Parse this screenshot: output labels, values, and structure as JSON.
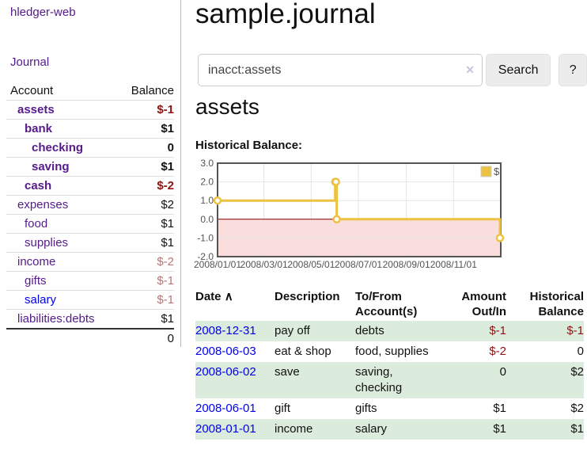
{
  "app": {
    "brand": "hledger-web",
    "nav_journal": "Journal"
  },
  "sidebar": {
    "table": {
      "headers": {
        "account": "Account",
        "balance": "Balance"
      },
      "rows": [
        {
          "account": "assets",
          "depth": 1,
          "bold": true,
          "link_color": "purple",
          "balance": "$-1",
          "balance_style": "neg-strong"
        },
        {
          "account": "bank",
          "depth": 2,
          "bold": true,
          "link_color": "purple",
          "balance": "$1",
          "balance_style": "normal"
        },
        {
          "account": "checking",
          "depth": 3,
          "bold": true,
          "link_color": "purple",
          "balance": "0",
          "balance_style": "normal"
        },
        {
          "account": "saving",
          "depth": 3,
          "bold": true,
          "link_color": "purple",
          "balance": "$1",
          "balance_style": "normal"
        },
        {
          "account": "cash",
          "depth": 2,
          "bold": true,
          "link_color": "purple",
          "balance": "$-2",
          "balance_style": "neg-strong"
        },
        {
          "account": "expenses",
          "depth": 1,
          "bold": false,
          "link_color": "purple",
          "balance": "$2",
          "balance_style": "normal"
        },
        {
          "account": "food",
          "depth": 2,
          "bold": false,
          "link_color": "purple",
          "balance": "$1",
          "balance_style": "normal"
        },
        {
          "account": "supplies",
          "depth": 2,
          "bold": false,
          "link_color": "purple",
          "balance": "$1",
          "balance_style": "normal"
        },
        {
          "account": "income",
          "depth": 1,
          "bold": false,
          "link_color": "purple",
          "balance": "$-2",
          "balance_style": "neg-soft"
        },
        {
          "account": "gifts",
          "depth": 2,
          "bold": false,
          "link_color": "purple",
          "balance": "$-1",
          "balance_style": "neg-soft"
        },
        {
          "account": "salary",
          "depth": 2,
          "bold": false,
          "link_color": "blue",
          "balance": "$-1",
          "balance_style": "neg-soft"
        },
        {
          "account": "liabilities:debts",
          "depth": 1,
          "bold": false,
          "link_color": "purple",
          "balance": "$1",
          "balance_style": "normal"
        }
      ],
      "total": "0"
    }
  },
  "main": {
    "title": "sample.journal",
    "search": {
      "value": "inacct:assets",
      "clear_icon": "✕",
      "button_label": "Search",
      "help_label": "?"
    },
    "heading": "assets",
    "chart_title": "Historical Balance:"
  },
  "chart_data": {
    "type": "line",
    "title": "Historical Balance",
    "legend_label": "$",
    "legend_position": "top-right",
    "grid": true,
    "steps": true,
    "ylim": [
      -2,
      3
    ],
    "xlim": [
      "2008-01-01",
      "2009-01-01"
    ],
    "yticks": [
      {
        "label": "3.0",
        "value": 3
      },
      {
        "label": "2.0",
        "value": 2
      },
      {
        "label": "1.0",
        "value": 1
      },
      {
        "label": "0.0",
        "value": 0
      },
      {
        "label": "-1.0",
        "value": -1
      },
      {
        "label": "-2.0",
        "value": -2
      }
    ],
    "xticks": [
      {
        "label": "2008/01/01",
        "date": "2008-01-01"
      },
      {
        "label": "2008/03/01",
        "date": "2008-03-01"
      },
      {
        "label": "2008/05/01",
        "date": "2008-05-01"
      },
      {
        "label": "2008/07/01",
        "date": "2008-07-01"
      },
      {
        "label": "2008/09/01",
        "date": "2008-09-01"
      },
      {
        "label": "2008/11/01",
        "date": "2008-11-01"
      },
      {
        "label": "",
        "date": "2009-01-01"
      }
    ],
    "series": [
      {
        "name": "$",
        "color": "#EDC240",
        "points": [
          [
            "2008-01-01",
            1
          ],
          [
            "2008-06-01",
            2
          ],
          [
            "2008-06-02",
            2
          ],
          [
            "2008-06-03",
            0
          ],
          [
            "2008-12-31",
            -1
          ]
        ]
      }
    ],
    "colors": {
      "negative_region_fill": "#fadddd",
      "zero_line": "#8b0000",
      "grid_border": "#545454",
      "tick_text": "#545454",
      "gridline": "#e4e4e4"
    }
  },
  "register": {
    "headers": {
      "date": "Date",
      "sort_icon": "∧",
      "description": "Description",
      "accounts": "To/From Account(s)",
      "amount": "Amount Out/In",
      "balance": "Historical Balance"
    },
    "rows": [
      {
        "date": "2008-12-31",
        "description": "pay off",
        "accounts": "debts",
        "amount": "$-1",
        "amount_negative": true,
        "balance": "$-1",
        "balance_negative": true,
        "shaded": true
      },
      {
        "date": "2008-06-03",
        "description": "eat & shop",
        "accounts": "food, supplies",
        "amount": "$-2",
        "amount_negative": true,
        "balance": "0",
        "balance_negative": false,
        "shaded": false
      },
      {
        "date": "2008-06-02",
        "description": "save",
        "accounts": "saving, checking",
        "amount": "0",
        "amount_negative": false,
        "balance": "$2",
        "balance_negative": false,
        "shaded": true
      },
      {
        "date": "2008-06-01",
        "description": "gift",
        "accounts": "gifts",
        "amount": "$1",
        "amount_negative": false,
        "balance": "$2",
        "balance_negative": false,
        "shaded": false
      },
      {
        "date": "2008-01-01",
        "description": "income",
        "accounts": "salary",
        "amount": "$1",
        "amount_negative": false,
        "balance": "$1",
        "balance_negative": false,
        "shaded": true
      }
    ]
  },
  "colors": {
    "link_purple": "#551A8B",
    "link_blue": "#0000EE",
    "negative_strong": "#8e1414",
    "negative_soft": "#bb7777",
    "row_shade_green": "#dcecdc",
    "accent_yellow": "#EDC240"
  }
}
